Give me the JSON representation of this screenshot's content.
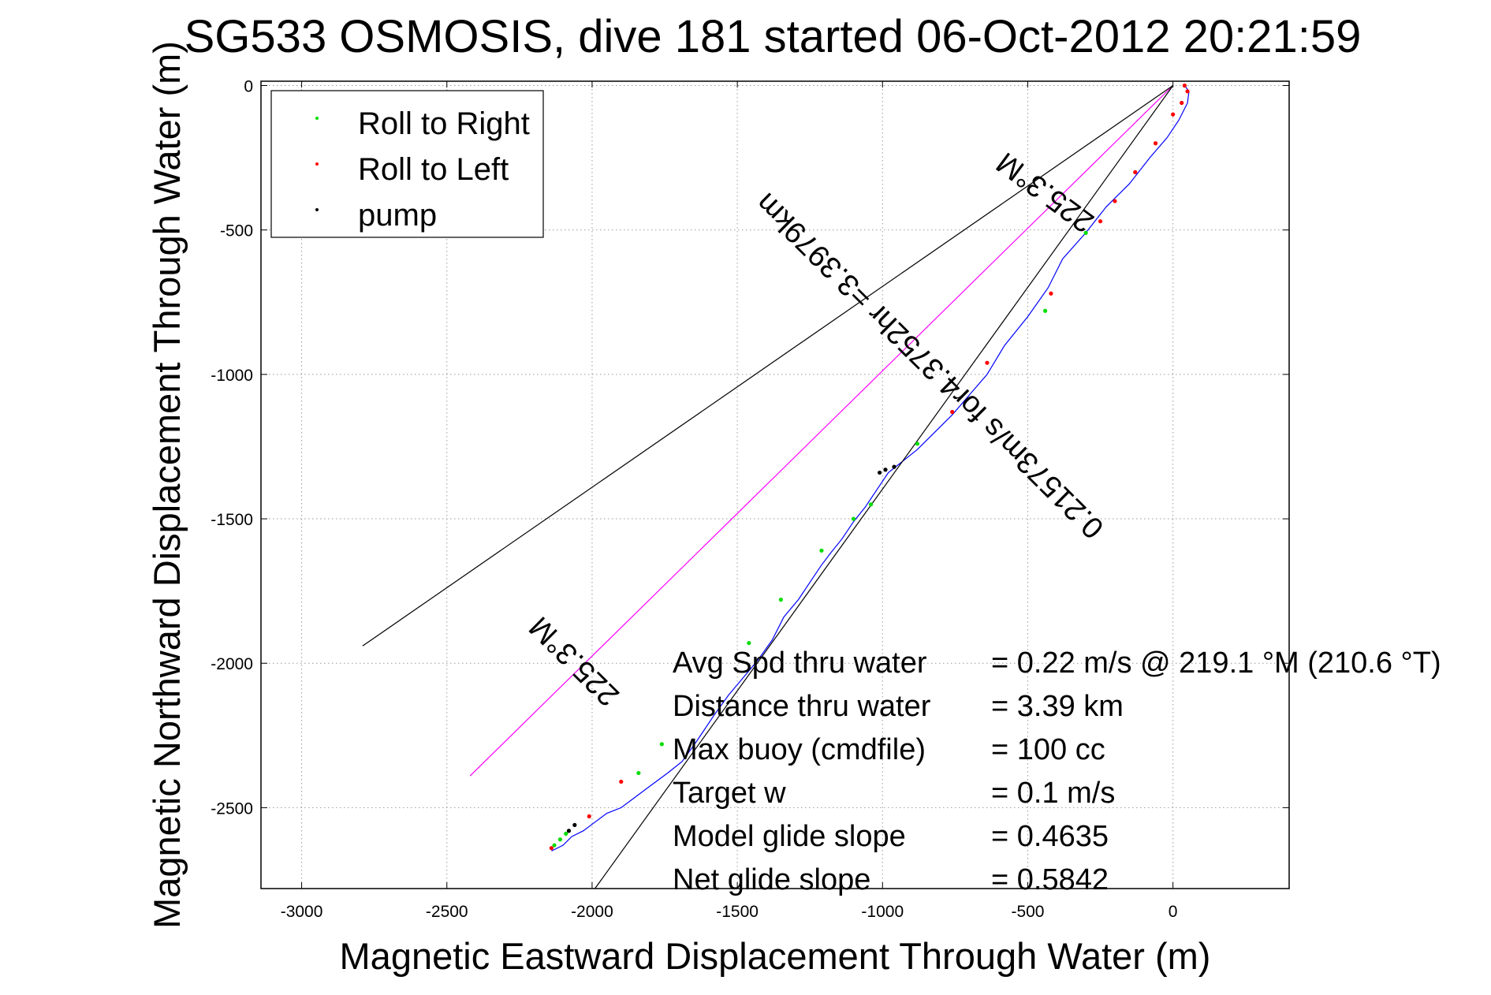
{
  "chart_data": {
    "type": "line",
    "title": "SG533 OSMOSIS, dive 181 started 06-Oct-2012 20:21:59",
    "xlabel": "Magnetic Eastward Displacement Through Water (m)",
    "ylabel": "Magnetic Northward Displacement Through Water (m)",
    "xlim": [
      -3140,
      400
    ],
    "ylim": [
      -2780,
      15
    ],
    "xticks": [
      -3000,
      -2500,
      -2000,
      -1500,
      -1000,
      -500,
      0
    ],
    "yticks": [
      0,
      -500,
      -1000,
      -1500,
      -2000,
      -2500
    ],
    "xtick_labels": [
      "-3000",
      "-2500",
      "-2000",
      "-1500",
      "-1000",
      "-500",
      "0"
    ],
    "ytick_labels": [
      "0",
      "-500",
      "-1000",
      "-1500",
      "-2000",
      "-2500"
    ],
    "grid": true,
    "legend": {
      "position": "top-left",
      "entries": [
        {
          "label": "Roll to Right",
          "color": "#00dd00"
        },
        {
          "label": "Roll to Left",
          "color": "#ff0000"
        },
        {
          "label": "pump",
          "color": "#000000"
        }
      ]
    },
    "series": [
      {
        "style": "line",
        "color": "#0000ff",
        "x": [
          40,
          55,
          50,
          20,
          -20,
          -80,
          -150,
          -230,
          -300,
          -380,
          -430,
          -500,
          -580,
          -640,
          -700,
          -760,
          -830,
          -880,
          -930,
          -980,
          -1020,
          -1060,
          -1100,
          -1140,
          -1180,
          -1210,
          -1250,
          -1290,
          -1340,
          -1380,
          -1430,
          -1480,
          -1530,
          -1580,
          -1640,
          -1690,
          -1740,
          -1780,
          -1820,
          -1860,
          -1900,
          -1950,
          -1990,
          -2030,
          -2070,
          -2100,
          -2140
        ],
        "y": [
          0,
          -20,
          -60,
          -120,
          -180,
          -250,
          -340,
          -420,
          -510,
          -600,
          -700,
          -800,
          -900,
          -1000,
          -1070,
          -1140,
          -1210,
          -1260,
          -1300,
          -1340,
          -1400,
          -1460,
          -1510,
          -1570,
          -1620,
          -1660,
          -1720,
          -1780,
          -1840,
          -1920,
          -1990,
          -2050,
          -2110,
          -2180,
          -2270,
          -2340,
          -2380,
          -2410,
          -2440,
          -2470,
          -2500,
          -2520,
          -2550,
          -2580,
          -2600,
          -2630,
          -2650
        ]
      },
      {
        "style": "line",
        "color": "#ff00ff",
        "x": [
          0,
          -2420
        ],
        "y": [
          0,
          -2390
        ]
      },
      {
        "style": "line",
        "color": "#000000",
        "x": [
          0,
          -2790
        ],
        "y": [
          0,
          -1940
        ]
      },
      {
        "style": "line",
        "color": "#000000",
        "x": [
          0,
          -1990
        ],
        "y": [
          0,
          -2780
        ]
      },
      {
        "style": "markers",
        "name": "Roll to Right",
        "color": "#00dd00",
        "x": [
          -300,
          -440,
          -880,
          -1040,
          -1100,
          -1210,
          -1350,
          -1460,
          -1760,
          -1840,
          -2090,
          -2110,
          -2130
        ],
        "y": [
          -510,
          -780,
          -1240,
          -1450,
          -1500,
          -1610,
          -1780,
          -1930,
          -2280,
          -2380,
          -2590,
          -2610,
          -2630
        ]
      },
      {
        "style": "markers",
        "name": "Roll to Left",
        "color": "#ff0000",
        "x": [
          40,
          50,
          30,
          0,
          -60,
          -130,
          -200,
          -250,
          -420,
          -640,
          -760,
          -1900,
          -2010,
          -2140
        ],
        "y": [
          0,
          -20,
          -60,
          -100,
          -200,
          -300,
          -400,
          -470,
          -720,
          -960,
          -1130,
          -2410,
          -2530,
          -2640
        ]
      },
      {
        "style": "markers",
        "name": "pump",
        "color": "#000000",
        "x": [
          -960,
          -990,
          -1010,
          -2060,
          -2080
        ],
        "y": [
          -1320,
          -1330,
          -1340,
          -2560,
          -2580
        ]
      }
    ],
    "annotations": [
      {
        "text": "Avg Spd thru water",
        "value": "=  0.22 m/s @ 219.1 °M (210.6 °T)"
      },
      {
        "text": "Distance thru water",
        "value": "=  3.39 km"
      },
      {
        "text": "Max buoy (cmdfile)",
        "value": "= 100 cc"
      },
      {
        "text": "Target w",
        "value": "= 0.1 m/s"
      },
      {
        "text": "Model glide slope",
        "value": "= 0.4635"
      },
      {
        "text": "Net glide slope",
        "value": "= 0.5842"
      }
    ],
    "rotated_labels": [
      {
        "text": "225.3°M"
      },
      {
        "text": "0.21573m/s for4.3752hr =3.3979km"
      },
      {
        "text": "225.3°M"
      }
    ]
  }
}
